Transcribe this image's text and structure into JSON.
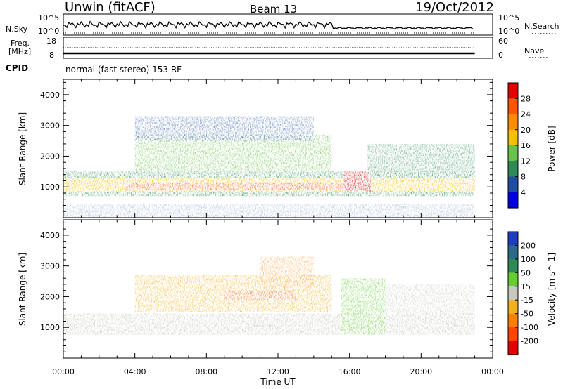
{
  "header": {
    "station": "Unwin (fitACF)",
    "beam": "Beam 13",
    "date": "19/Oct/2012"
  },
  "strip_labels": {
    "nsky": "N.Sky",
    "nsearch": "N.Search",
    "freq_line1": "Freq.",
    "freq_line2": "[MHz]",
    "nave": "Nave",
    "cpid": "CPID",
    "cpid_value": "normal (fast stereo) 153 RF",
    "nsky_ticks": [
      "10^5",
      "10^0"
    ],
    "nsearch_ticks": [
      "10^5",
      "10^0"
    ],
    "freq_ticks": [
      "18",
      "8"
    ],
    "nave_ticks": [
      "60",
      "0"
    ]
  },
  "chart_data": [
    {
      "type": "heatmap",
      "ylabel": "Slant Range [km]",
      "ylim": [
        0,
        4500
      ],
      "yticks": [
        "1000",
        "2000",
        "3000",
        "4000"
      ],
      "xticks": [
        "00:00",
        "04:00",
        "08:00",
        "12:00",
        "16:00",
        "20:00",
        "00:00"
      ],
      "colorbar": {
        "label": "Power [dB]",
        "ticks": [
          "28",
          "24",
          "20",
          "16",
          "12",
          "8",
          "4"
        ],
        "colors": [
          "#e60000",
          "#ff5500",
          "#ff8c00",
          "#f5c000",
          "#6bc24a",
          "#2e8b57",
          "#1f4fa0",
          "#0000e6"
        ]
      },
      "features": [
        {
          "name": "main band",
          "start_h": 0.0,
          "end_h": 23.0,
          "range_km": [
            850,
            1400
          ],
          "level": "16-24"
        },
        {
          "name": "strong patch",
          "start_h": 15.7,
          "end_h": 17.2,
          "range_km": [
            850,
            1500
          ],
          "level": "28"
        },
        {
          "name": "upper band",
          "start_h": 4.0,
          "end_h": 15.0,
          "range_km": [
            1500,
            2700
          ],
          "level": "8-16"
        }
      ]
    },
    {
      "type": "heatmap",
      "ylabel": "Slant Range [km]",
      "ylim": [
        0,
        4500
      ],
      "yticks": [
        "1000",
        "2000",
        "3000",
        "4000"
      ],
      "xticks": [
        "00:00",
        "04:00",
        "08:00",
        "12:00",
        "16:00",
        "20:00",
        "00:00"
      ],
      "xlabel": "Time UT",
      "colorbar": {
        "label": "Velocity [m s^-1]",
        "ticks": [
          "200",
          "100",
          "50",
          "15",
          "-15",
          "-50",
          "-100",
          "-200"
        ],
        "colors": [
          "#1f3fbf",
          "#2a6a8a",
          "#2e8b57",
          "#66cc33",
          "#c8c8c0",
          "#f0b020",
          "#ff8000",
          "#ff4500",
          "#e60000"
        ]
      },
      "features": [
        {
          "name": "ground scatter",
          "start_h": 0.0,
          "end_h": 23.0,
          "range_km": [
            850,
            1400
          ],
          "level": "-15..15"
        },
        {
          "name": "ionospheric scatter",
          "start_h": 4.0,
          "end_h": 15.0,
          "range_km": [
            1500,
            2700
          ],
          "level": "-50..-15"
        }
      ]
    }
  ]
}
